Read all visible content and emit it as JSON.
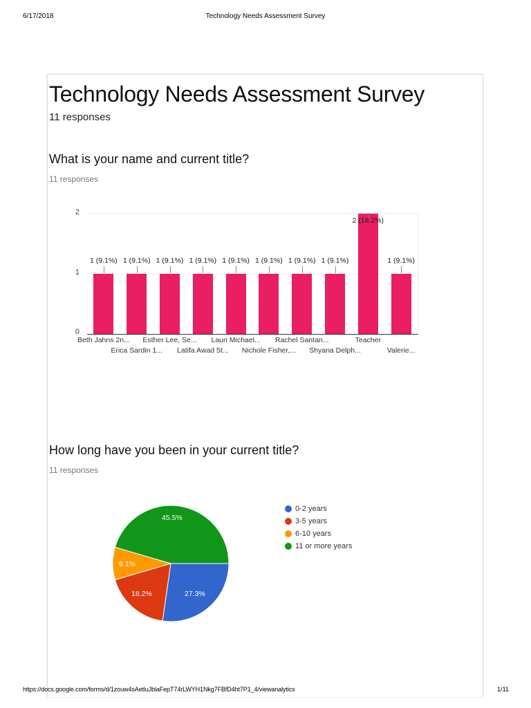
{
  "print_header": {
    "date": "6/17/2018",
    "title": "Technology Needs Assessment Survey"
  },
  "print_footer": {
    "url": "https://docs.google.com/forms/d/1zouw4sAetluJblaFepT74rLWYH1Nkg7FBfD4ht7P1_4/viewanalytics",
    "page": "1/11"
  },
  "survey": {
    "title": "Technology Needs Assessment Survey",
    "responses": "11 responses"
  },
  "questions": [
    {
      "question": "What is your name and current title?",
      "responses": "11 responses"
    },
    {
      "question": "How long have you been in your current title?",
      "responses": "11 responses"
    }
  ],
  "chart_data": [
    {
      "type": "bar",
      "title": "What is your name and current title?",
      "xlabel": "",
      "ylabel": "",
      "ylim": [
        0,
        2
      ],
      "yticks": [
        "0",
        "1",
        "2"
      ],
      "grid": true,
      "color": "#e91e63",
      "categories": [
        "Beth Jahns 2n...",
        "Erica Sardin 1...",
        "Esther Lee, Se...",
        "Latifa Awad 5t...",
        "Lauri Michael...",
        "Nichole Fisher,...",
        "Rachel Santan...",
        "Shyana Delph...",
        "Teacher",
        "Valerie..."
      ],
      "values": [
        1,
        1,
        1,
        1,
        1,
        1,
        1,
        1,
        2,
        1
      ],
      "data_labels": [
        "1 (9.1%)",
        "1 (9.1%)",
        "1 (9.1%)",
        "1 (9.1%)",
        "1 (9.1%)",
        "1 (9.1%)",
        "1 (9.1%)",
        "1 (9.1%)",
        "2 (18.2%)",
        "1 (9.1%)"
      ]
    },
    {
      "type": "pie",
      "title": "How long have you been in your current title?",
      "legend_position": "right",
      "categories": [
        "0-2 years",
        "3-5 years",
        "6-10 years",
        "11 or more years"
      ],
      "values": [
        27.3,
        18.2,
        9.1,
        45.5
      ],
      "counts": [
        3,
        2,
        1,
        5
      ],
      "data_labels": [
        "27.3%",
        "18.2%",
        "9.1%",
        "45.5%"
      ],
      "colors": [
        "#3366cc",
        "#dc3912",
        "#ff9900",
        "#109618"
      ]
    }
  ]
}
